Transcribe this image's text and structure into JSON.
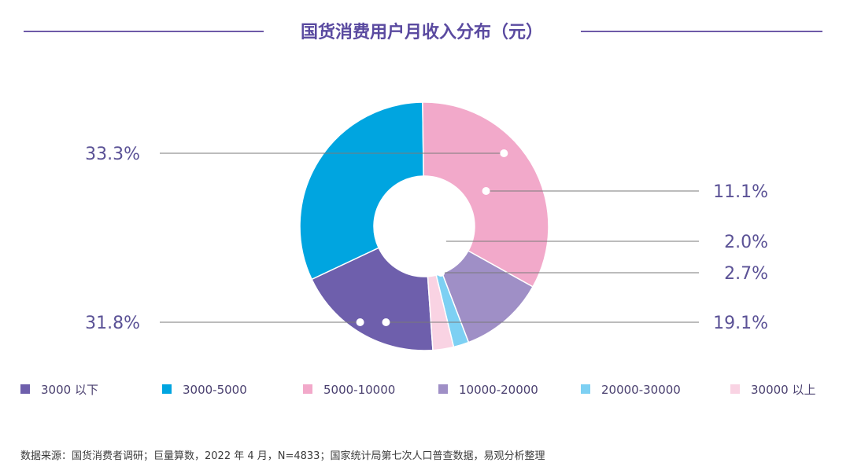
{
  "title": "国货消费用户月收入分布（元）",
  "source_note": "数据来源：国货消费者调研；巨量算数，2022 年 4 月，N=4833；国家统计局第七次人口普查数据，易观分析整理",
  "colors": {
    "title": "#5a4aa0",
    "rule": "#6e5aa8",
    "label": "#5b5296"
  },
  "chart_data": {
    "type": "pie",
    "donut": true,
    "title": "国货消费用户月收入分布（元）",
    "legend_position": "bottom",
    "series": [
      {
        "name": "3000 以下",
        "value": 19.1,
        "label": "19.1%",
        "color": "#6e5fac"
      },
      {
        "name": "3000-5000",
        "value": 31.8,
        "label": "31.8%",
        "color": "#00a5e0"
      },
      {
        "name": "5000-10000",
        "value": 33.3,
        "label": "33.3%",
        "color": "#f2a9ca"
      },
      {
        "name": "10000-20000",
        "value": 11.1,
        "label": "11.1%",
        "color": "#9f8fc6"
      },
      {
        "name": "20000-30000",
        "value": 2.0,
        "label": "2.0%",
        "color": "#7dd0f3"
      },
      {
        "name": "30000 以上",
        "value": 2.7,
        "label": "2.7%",
        "color": "#f9d3e3"
      }
    ]
  }
}
